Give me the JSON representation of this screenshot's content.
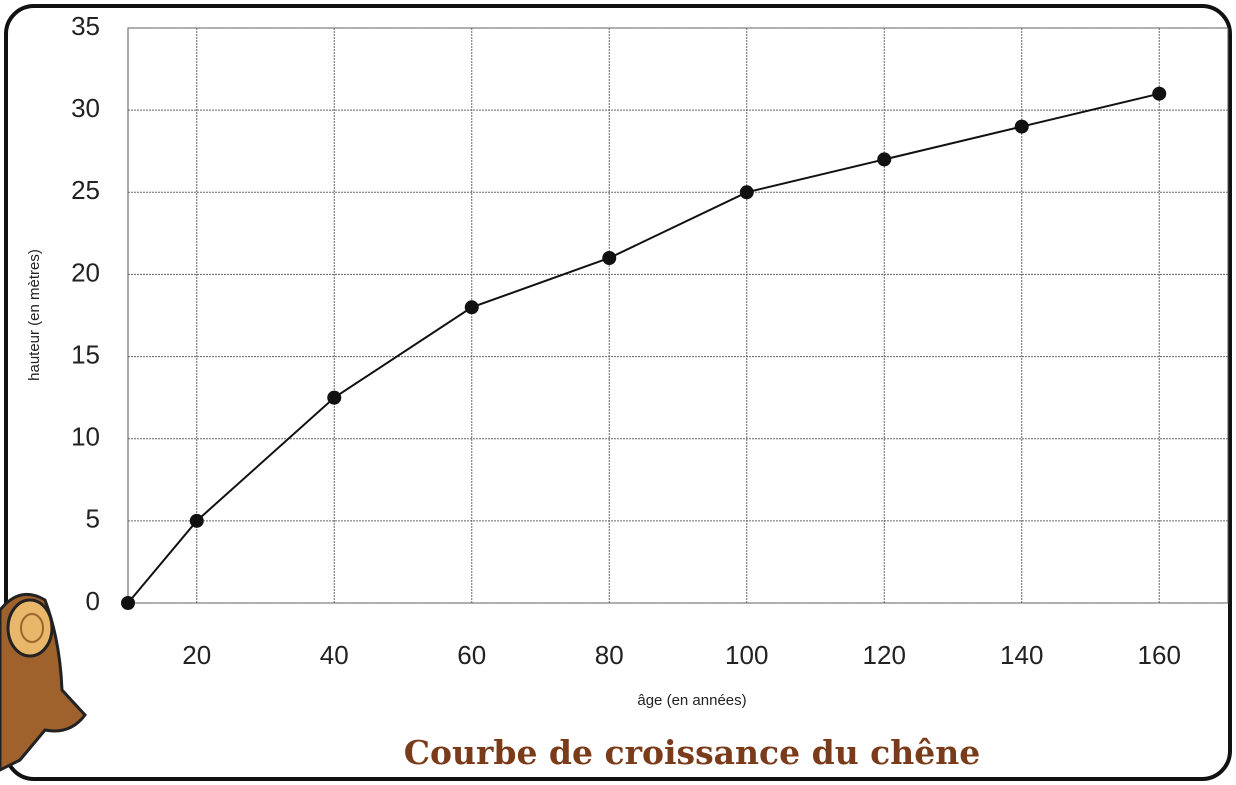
{
  "chart_data": {
    "type": "line",
    "title": "Courbe de croissance du chêne",
    "x_label": "âge (en années)",
    "y_label": "hauteur (en mètres)",
    "x": [
      10,
      20,
      40,
      60,
      80,
      100,
      120,
      140,
      160
    ],
    "series": [
      {
        "color": "#111111",
        "values": [
          0,
          5,
          12.5,
          18,
          21,
          25,
          27,
          29,
          31
        ]
      }
    ],
    "xlim": [
      10,
      170
    ],
    "xticks": [
      20,
      40,
      60,
      80,
      100,
      120,
      140,
      160
    ],
    "ylim": [
      0,
      35
    ],
    "yticks": [
      0,
      5,
      10,
      15,
      20,
      25,
      30,
      35
    ],
    "grid": true
  }
}
